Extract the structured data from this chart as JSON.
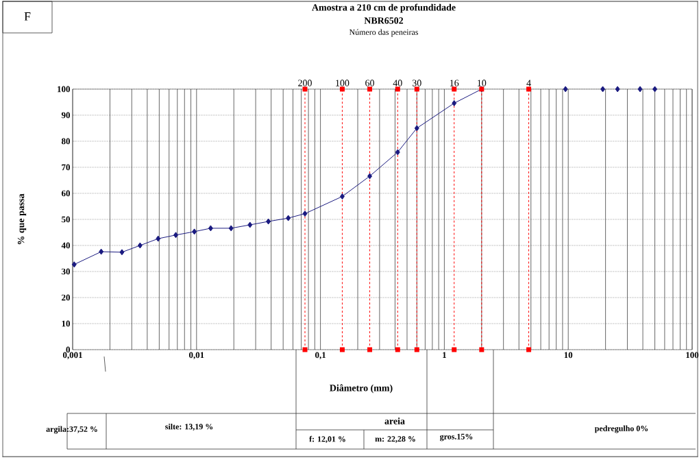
{
  "chart_data": {
    "type": "line",
    "title": "Amostra a 210 cm de profundidade",
    "subtitle": "NBR6502",
    "xlabel": "Diâmetro (mm)",
    "ylabel": "% que passa",
    "annotations": [
      "F",
      "Número das peneiras",
      "argila:37,52 %",
      "silte: 13,19 %",
      "areia",
      "f: 12,01 %",
      "m: 22,28 %",
      "gros.15%",
      "pedregulho 0%",
      {
        "text": "200",
        "x": 0.075,
        "y": 100
      },
      {
        "text": "100",
        "x": 0.15,
        "y": 100
      },
      {
        "text": "60",
        "x": 0.25,
        "y": 100
      },
      {
        "text": "40",
        "x": 0.42,
        "y": 100
      },
      {
        "text": "30",
        "x": 0.6,
        "y": 100
      },
      {
        "text": "16",
        "x": 1.2,
        "y": 100
      },
      {
        "text": "10",
        "x": 2,
        "y": 100
      },
      {
        "text": "4",
        "x": 4.8,
        "y": 100
      }
    ],
    "log": "x",
    "grid": true,
    "marker": "diamond",
    "line_style": "solid",
    "xlim": [
      0.001,
      100
    ],
    "xticks": [
      {
        "value": 0.001,
        "label": "0,001"
      },
      {
        "value": 0.01,
        "label": "0,01"
      },
      {
        "value": 0.1,
        "label": "0,1"
      },
      1,
      10,
      100
    ],
    "ylim": [
      0,
      100
    ],
    "yticks": [
      0,
      10,
      20,
      30,
      40,
      50,
      60,
      70,
      80,
      90,
      100
    ],
    "series": [
      {
        "type": "line",
        "color": "#1a1a80",
        "x": [
          0.00103,
          0.0017,
          0.0025,
          0.0035,
          0.0049,
          0.0068,
          0.0096,
          0.013,
          0.019,
          0.027,
          0.038,
          0.055,
          0.075,
          0.15,
          0.25,
          0.42,
          0.6,
          1.2,
          2
        ],
        "values": [
          32.7,
          37.6,
          37.4,
          40,
          42.6,
          44,
          45.3,
          46.6,
          46.6,
          47.9,
          49.2,
          50.5,
          52.2,
          58.8,
          66.6,
          75.8,
          85,
          94.6,
          100
        ]
      },
      {
        "type": "scatter",
        "color": "#1a1a80",
        "x": [
          9.5,
          19,
          25,
          38,
          50
        ],
        "values": [
          100,
          100,
          100,
          100,
          100
        ]
      }
    ],
    "ref_lines": [
      {
        "axis": "x",
        "value": 0.075,
        "color": "#ff0000",
        "line_style": "dashed"
      },
      {
        "axis": "x",
        "value": 0.15,
        "color": "#ff0000",
        "line_style": "dashed"
      },
      {
        "axis": "x",
        "value": 0.25,
        "color": "#ff0000",
        "line_style": "dashed"
      },
      {
        "axis": "x",
        "value": 0.42,
        "color": "#ff0000",
        "line_style": "dashed"
      },
      {
        "axis": "x",
        "value": 0.6,
        "color": "#ff0000",
        "line_style": "dashed"
      },
      {
        "axis": "x",
        "value": 1.2,
        "color": "#ff0000",
        "line_style": "dashed"
      },
      {
        "axis": "x",
        "value": 2,
        "color": "#ff0000",
        "line_style": "dashed"
      },
      {
        "axis": "x",
        "value": 4.8,
        "color": "#ff0000",
        "line_style": "dashed"
      }
    ]
  }
}
